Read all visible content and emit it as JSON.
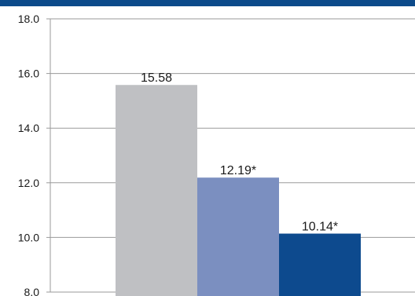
{
  "chart_data": {
    "type": "bar",
    "categories": [
      "",
      "",
      ""
    ],
    "values": [
      15.58,
      12.19,
      10.14
    ],
    "data_labels": [
      "15.58",
      "12.19*",
      "10.14*"
    ],
    "colors": [
      "#bfc0c3",
      "#7b8fc0",
      "#0d4a8e"
    ],
    "yticks": [
      "8.0",
      "10.0",
      "12.0",
      "14.0",
      "16.0",
      "18.0"
    ],
    "ylim": [
      8,
      18
    ],
    "grid": true,
    "title": "",
    "xlabel": "",
    "ylabel": ""
  },
  "theme": {
    "accent": "#0c4a8a",
    "grid": "#9a9a9a"
  }
}
